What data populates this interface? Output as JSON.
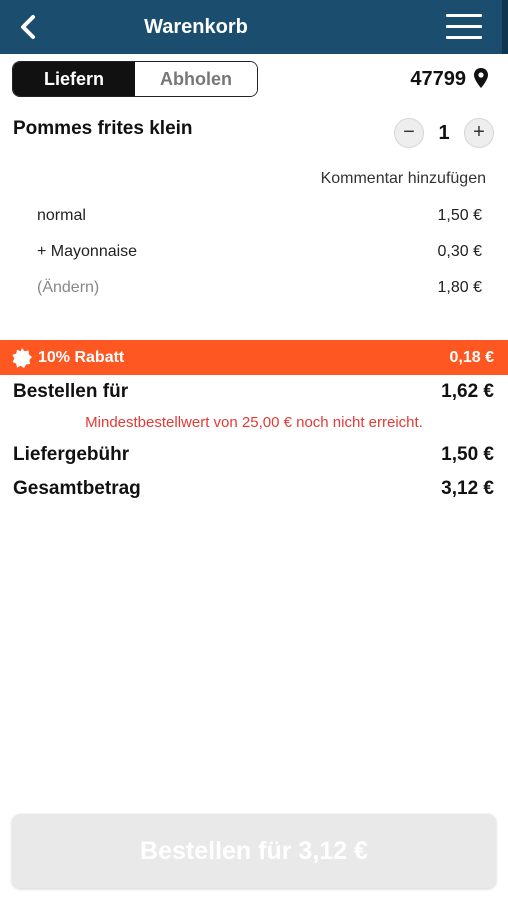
{
  "header": {
    "title": "Warenkorb",
    "back_icon": "chevron-left-icon",
    "menu_icon": "hamburger-menu-icon"
  },
  "delivery_toggle": {
    "options": [
      "Liefern",
      "Abholen"
    ],
    "selected": "Liefern"
  },
  "location": {
    "zip": "47799",
    "icon": "map-pin-icon"
  },
  "cart_item": {
    "name": "Pommes frites klein",
    "quantity": "1",
    "decrement_symbol": "−",
    "increment_symbol": "+",
    "comment_label": "Kommentar hinzufügen",
    "options": [
      {
        "label": "normal",
        "price": "1,50 €"
      },
      {
        "label": "+ Mayonnaise",
        "price": "0,30 €"
      },
      {
        "label": "(Ändern)",
        "price": "1,80 €"
      }
    ]
  },
  "discount": {
    "label": "10% Rabatt",
    "amount": "0,18 €",
    "color": "#ff5722",
    "icon": "badge-icon"
  },
  "summary": {
    "order_label": "Bestellen für",
    "order_amount": "1,62 €",
    "min_order_warning": "Mindestbestellwert von 25,00 € noch nicht erreicht.",
    "delivery_fee_label": "Liefergebühr",
    "delivery_fee_amount": "1,50 €",
    "total_label": "Gesamtbetrag",
    "total_amount": "3,12 €"
  },
  "order_button": {
    "label": "Bestellen für 3,12 €"
  },
  "colors": {
    "header": "#1a4d6e",
    "accent": "#ff5722",
    "warning": "#e53935"
  }
}
